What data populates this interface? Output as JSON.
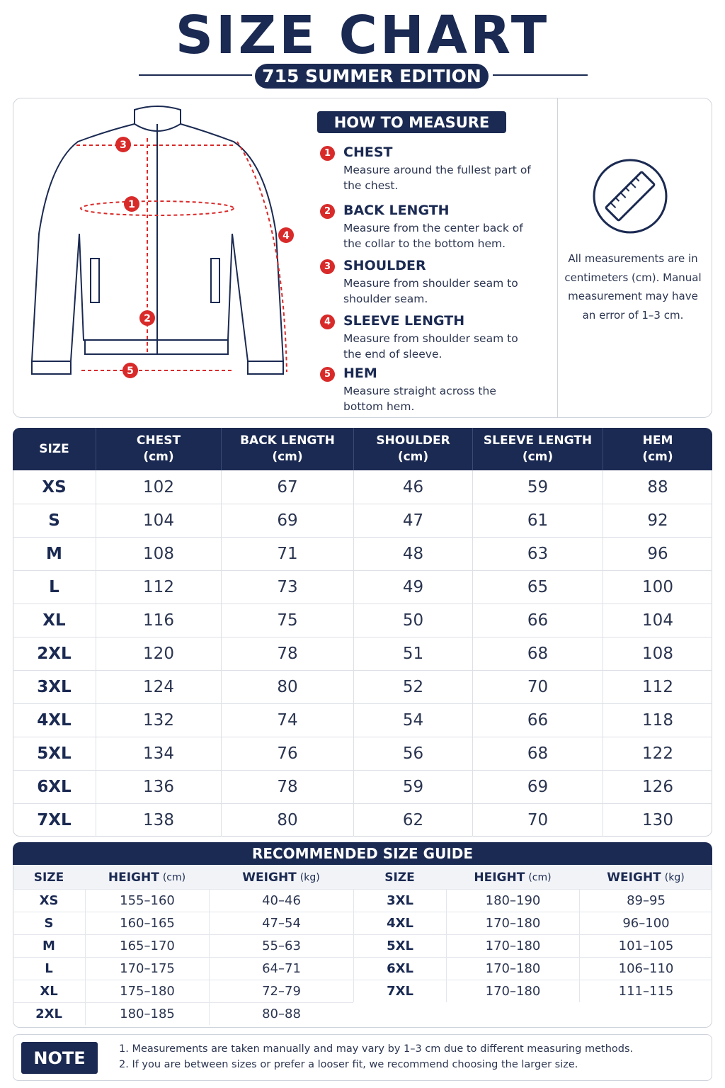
{
  "header": {
    "title": "SIZE CHART",
    "subtitle": "715 SUMMER EDITION"
  },
  "measure": {
    "heading": "HOW TO MEASURE",
    "items": [
      {
        "number": "1",
        "name": "CHEST",
        "description": "Measure around the fullest part of the chest."
      },
      {
        "number": "2",
        "name": "BACK LENGTH",
        "description": "Measure from the center back of the collar to the bottom hem."
      },
      {
        "number": "3",
        "name": "SHOULDER",
        "description": "Measure from shoulder seam to shoulder seam."
      },
      {
        "number": "4",
        "name": "SLEEVE LENGTH",
        "description": "Measure from shoulder seam to the end of sleeve."
      },
      {
        "number": "5",
        "name": "HEM",
        "description": "Measure straight across the bottom hem."
      }
    ],
    "info": "All measurements are in centimeters (cm). Manual measurement may have an error of 1–3 cm."
  },
  "size_table": {
    "headers": [
      {
        "name": "SIZE"
      },
      {
        "name": "CHEST",
        "unit": "(cm)"
      },
      {
        "name": "BACK LENGTH",
        "unit": "(cm)"
      },
      {
        "name": "SHOULDER",
        "unit": "(cm)"
      },
      {
        "name": "SLEEVE LENGTH",
        "unit": "(cm)"
      },
      {
        "name": "HEM",
        "unit": "(cm)"
      }
    ],
    "rows": [
      [
        "XS",
        102,
        67,
        46,
        59,
        88
      ],
      [
        "S",
        104,
        69,
        47,
        61,
        92
      ],
      [
        "M",
        108,
        71,
        48,
        63,
        96
      ],
      [
        "L",
        112,
        73,
        49,
        65,
        100
      ],
      [
        "XL",
        116,
        75,
        50,
        66,
        104
      ],
      [
        "2XL",
        120,
        78,
        51,
        68,
        108
      ],
      [
        "3XL",
        124,
        80,
        52,
        70,
        112
      ],
      [
        "4XL",
        132,
        74,
        54,
        66,
        118
      ],
      [
        "5XL",
        134,
        76,
        56,
        68,
        122
      ],
      [
        "6XL",
        136,
        78,
        59,
        69,
        126
      ],
      [
        "7XL",
        138,
        80,
        62,
        70,
        130
      ]
    ]
  },
  "guide": {
    "title": "RECOMMENDED SIZE GUIDE",
    "headers": [
      {
        "name": "SIZE"
      },
      {
        "name": "HEIGHT",
        "unit": "(cm)"
      },
      {
        "name": "WEIGHT",
        "unit": "(kg)"
      }
    ],
    "left_rows": [
      [
        "XS",
        "155–160",
        "40–46"
      ],
      [
        "S",
        "160–165",
        "47–54"
      ],
      [
        "M",
        "165–170",
        "55–63"
      ],
      [
        "L",
        "170–175",
        "64–71"
      ],
      [
        "XL",
        "175–180",
        "72–79"
      ],
      [
        "2XL",
        "180–185",
        "80–88"
      ]
    ],
    "right_rows": [
      [
        "3XL",
        "180–190",
        "89–95"
      ],
      [
        "4XL",
        "170–180",
        "96–100"
      ],
      [
        "5XL",
        "170–180",
        "101–105"
      ],
      [
        "6XL",
        "170–180",
        "106–110"
      ],
      [
        "7XL",
        "170–180",
        "111–115"
      ]
    ]
  },
  "note": {
    "label": "NOTE",
    "lines": [
      "1. Measurements are taken manually and may vary by 1–3 cm due to different measuring methods.",
      "2. If you are between sizes or prefer a looser fit, we recommend choosing the larger size."
    ]
  }
}
